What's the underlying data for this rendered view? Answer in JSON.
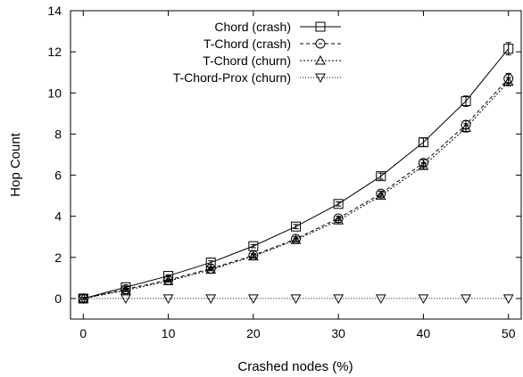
{
  "chart_data": {
    "type": "line",
    "title": "",
    "xlabel": "Crashed nodes (%)",
    "ylabel": "Hop Count",
    "xlim": [
      -1.5,
      51.5
    ],
    "ylim": [
      -1,
      14
    ],
    "xticks": [
      0,
      10,
      20,
      30,
      40,
      50
    ],
    "yticks": [
      0,
      2,
      4,
      6,
      8,
      10,
      12,
      14
    ],
    "grid": false,
    "legend_position": "top-left",
    "x": [
      0,
      5,
      10,
      15,
      20,
      25,
      30,
      35,
      40,
      45,
      50
    ],
    "series": [
      {
        "name": "Chord (crash)",
        "marker": "square",
        "line": "solid",
        "values": [
          0,
          0.55,
          1.1,
          1.75,
          2.55,
          3.5,
          4.6,
          5.95,
          7.6,
          9.6,
          12.15
        ],
        "error": [
          0.05,
          0.05,
          0.05,
          0.08,
          0.08,
          0.1,
          0.1,
          0.15,
          0.2,
          0.25,
          0.3
        ]
      },
      {
        "name": "T-Chord (crash)",
        "marker": "circle",
        "line": "dashed",
        "values": [
          0,
          0.45,
          0.9,
          1.45,
          2.1,
          2.9,
          3.9,
          5.1,
          6.6,
          8.45,
          10.7
        ],
        "error": [
          0.05,
          0.05,
          0.05,
          0.05,
          0.08,
          0.1,
          0.1,
          0.12,
          0.15,
          0.2,
          0.25
        ]
      },
      {
        "name": "T-Chord (churn)",
        "marker": "triangle-up",
        "line": "dotted",
        "values": [
          0,
          0.4,
          0.85,
          1.4,
          2.05,
          2.85,
          3.8,
          5.0,
          6.45,
          8.3,
          10.55
        ],
        "error": [
          0.05,
          0.05,
          0.05,
          0.05,
          0.08,
          0.08,
          0.1,
          0.1,
          0.15,
          0.2,
          0.2
        ]
      },
      {
        "name": "T-Chord-Prox (churn)",
        "marker": "triangle-down",
        "line": "dotted-fine",
        "values": [
          0,
          0,
          0,
          0,
          0,
          0,
          0,
          0,
          0,
          0,
          0
        ],
        "error": [
          0,
          0,
          0,
          0,
          0,
          0,
          0,
          0,
          0,
          0,
          0
        ]
      }
    ]
  }
}
